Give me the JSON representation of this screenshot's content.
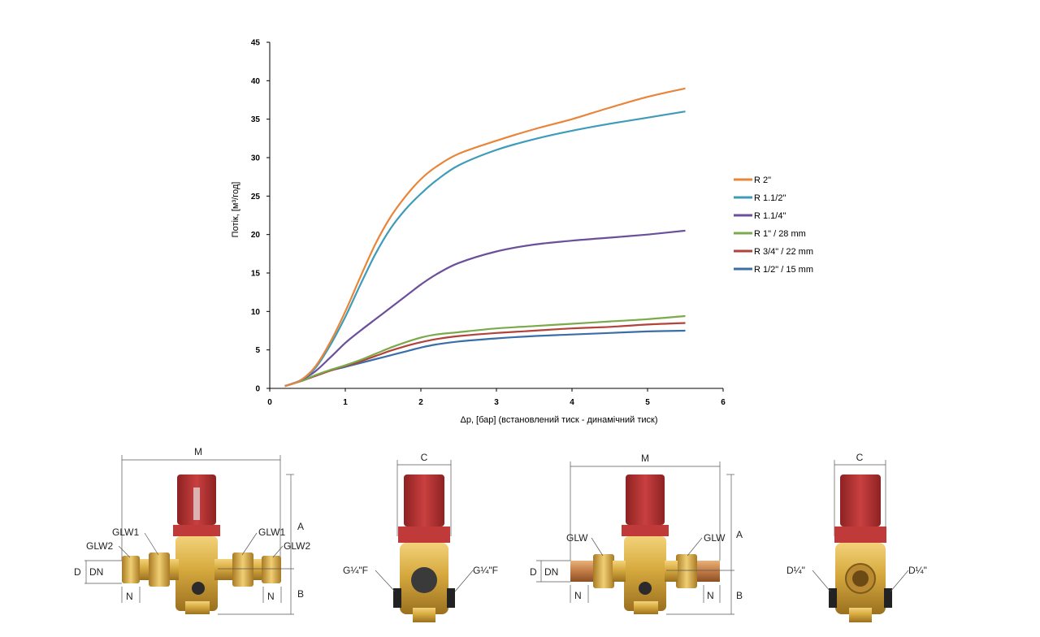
{
  "chart_data": {
    "type": "line",
    "xlabel": "Δp, [бар]  (встановлений тиск - динамічний тиск)",
    "ylabel": "Потік, [м³/год]",
    "xlim": [
      0,
      6
    ],
    "ylim": [
      0,
      45
    ],
    "xticks": [
      0,
      1,
      2,
      3,
      4,
      5,
      6
    ],
    "yticks": [
      0,
      5,
      10,
      15,
      20,
      25,
      30,
      35,
      40,
      45
    ],
    "grid": false,
    "legend_position": "right",
    "series": [
      {
        "name": "R 2\"",
        "color": "#E8853A",
        "x": [
          0.2,
          0.4,
          0.6,
          0.8,
          1.0,
          1.2,
          1.4,
          1.6,
          1.8,
          2.0,
          2.2,
          2.5,
          3.0,
          3.5,
          4.0,
          4.5,
          5.0,
          5.5
        ],
        "y": [
          0.3,
          1.0,
          2.8,
          6.0,
          10.0,
          14.5,
          18.8,
          22.3,
          25.0,
          27.2,
          28.8,
          30.5,
          32.2,
          33.7,
          35.0,
          36.5,
          37.9,
          39.0
        ]
      },
      {
        "name": "R 1.1/2\"",
        "color": "#3E9CB9",
        "x": [
          0.2,
          0.4,
          0.6,
          0.8,
          1.0,
          1.2,
          1.4,
          1.6,
          1.8,
          2.0,
          2.2,
          2.5,
          3.0,
          3.5,
          4.0,
          4.5,
          5.0,
          5.5
        ],
        "y": [
          0.3,
          1.0,
          2.6,
          5.6,
          9.3,
          13.5,
          17.5,
          20.8,
          23.3,
          25.3,
          27.0,
          29.0,
          31.0,
          32.4,
          33.5,
          34.4,
          35.2,
          36.0
        ]
      },
      {
        "name": "R 1.1/4\"",
        "color": "#6B4F9B",
        "x": [
          0.2,
          0.4,
          0.6,
          0.8,
          1.0,
          1.2,
          1.4,
          1.6,
          1.8,
          2.0,
          2.2,
          2.5,
          3.0,
          3.5,
          4.0,
          4.5,
          5.0,
          5.5
        ],
        "y": [
          0.3,
          1.0,
          2.2,
          4.0,
          5.9,
          7.5,
          9.0,
          10.5,
          12.0,
          13.5,
          14.8,
          16.3,
          17.8,
          18.7,
          19.2,
          19.6,
          20.0,
          20.5
        ]
      },
      {
        "name": "R 1\" / 28 mm",
        "color": "#7BAA4A",
        "x": [
          0.2,
          0.4,
          0.6,
          0.8,
          1.0,
          1.2,
          1.4,
          1.6,
          1.8,
          2.0,
          2.2,
          2.5,
          3.0,
          3.5,
          4.0,
          4.5,
          5.0,
          5.5
        ],
        "y": [
          0.3,
          0.9,
          1.7,
          2.4,
          3.0,
          3.7,
          4.5,
          5.3,
          6.0,
          6.6,
          7.0,
          7.3,
          7.8,
          8.1,
          8.4,
          8.7,
          9.0,
          9.4
        ]
      },
      {
        "name": "R 3/4\" / 22 mm",
        "color": "#B2423A",
        "x": [
          0.2,
          0.4,
          0.6,
          0.8,
          1.0,
          1.2,
          1.4,
          1.6,
          1.8,
          2.0,
          2.2,
          2.5,
          3.0,
          3.5,
          4.0,
          4.5,
          5.0,
          5.5
        ],
        "y": [
          0.3,
          0.9,
          1.6,
          2.3,
          2.9,
          3.5,
          4.2,
          4.9,
          5.5,
          6.0,
          6.4,
          6.8,
          7.2,
          7.5,
          7.8,
          8.0,
          8.3,
          8.5
        ]
      },
      {
        "name": "R 1/2\" / 15 mm",
        "color": "#3A6EA8",
        "x": [
          0.2,
          0.4,
          0.6,
          0.8,
          1.0,
          1.2,
          1.4,
          1.6,
          1.8,
          2.0,
          2.2,
          2.5,
          3.0,
          3.5,
          4.0,
          4.5,
          5.0,
          5.5
        ],
        "y": [
          0.3,
          0.9,
          1.6,
          2.3,
          2.8,
          3.3,
          3.8,
          4.3,
          4.8,
          5.3,
          5.7,
          6.1,
          6.5,
          6.8,
          7.0,
          7.2,
          7.4,
          7.5
        ]
      }
    ]
  },
  "diagrams": {
    "d1": {
      "top_dim": "M",
      "left_top": "GLW1",
      "right_top": "GLW1",
      "left_outer": "GLW2",
      "right_outer": "GLW2",
      "dia_outer": "D",
      "dia_inner": "DN",
      "nut_left": "N",
      "nut_right": "N",
      "height_top": "A",
      "height_bottom": "B"
    },
    "d2": {
      "top_dim": "C",
      "port_left": "G¼\"F",
      "port_right": "G¼\"F"
    },
    "d3": {
      "top_dim": "M",
      "left_top": "GLW",
      "right_top": "GLW",
      "dia_outer": "D",
      "dia_inner": "DN",
      "nut_left": "N",
      "nut_right": "N",
      "height_top": "A",
      "height_bottom": "B"
    },
    "d4": {
      "top_dim": "C",
      "port_left": "D¼\"",
      "port_right": "D¼\""
    }
  }
}
